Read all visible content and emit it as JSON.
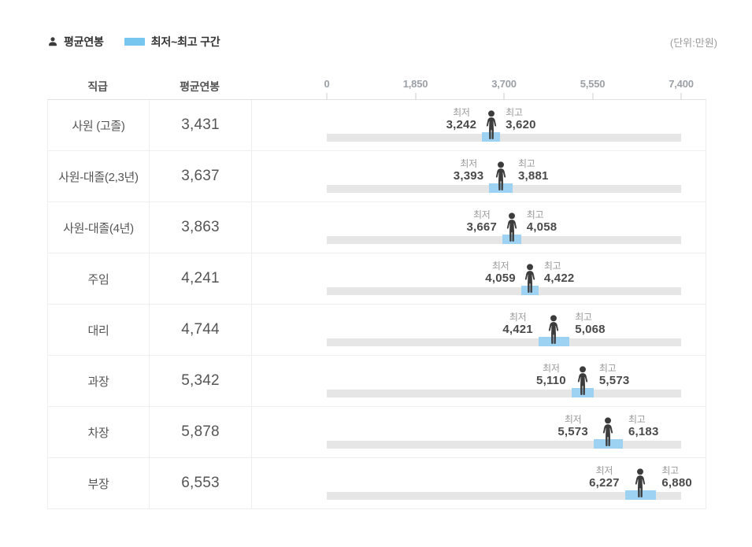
{
  "page": {
    "unit_note": "(단위:만원)"
  },
  "legend": {
    "avg_label": "평균연봉",
    "range_label": "최저~최고 구간",
    "swatch_color": "#76c6ef"
  },
  "table": {
    "headers": {
      "position": "직급",
      "average": "평균연봉"
    }
  },
  "chart_data": {
    "type": "bar",
    "subtype": "range-bar-with-average-marker",
    "xlim": [
      0,
      7400
    ],
    "axis_tick_values": [
      0,
      1850,
      3700,
      5550,
      7400
    ],
    "axis_tick_labels": [
      "0",
      "1,850",
      "3,700",
      "5,550",
      "7,400"
    ],
    "min_label": "최저",
    "max_label": "최고",
    "colors": {
      "range_bar": "#9dd2f3",
      "track": "#e6e6e6",
      "person": "#3c3c3c"
    },
    "rows": [
      {
        "position": "사원 (고졸)",
        "avg": 3431,
        "min": 3242,
        "max": 3620,
        "avg_display": "3,431",
        "min_display": "3,242",
        "max_display": "3,620"
      },
      {
        "position": "사원-대졸(2,3년)",
        "avg": 3637,
        "min": 3393,
        "max": 3881,
        "avg_display": "3,637",
        "min_display": "3,393",
        "max_display": "3,881"
      },
      {
        "position": "사원-대졸(4년)",
        "avg": 3863,
        "min": 3667,
        "max": 4058,
        "avg_display": "3,863",
        "min_display": "3,667",
        "max_display": "4,058"
      },
      {
        "position": "주임",
        "avg": 4241,
        "min": 4059,
        "max": 4422,
        "avg_display": "4,241",
        "min_display": "4,059",
        "max_display": "4,422"
      },
      {
        "position": "대리",
        "avg": 4744,
        "min": 4421,
        "max": 5068,
        "avg_display": "4,744",
        "min_display": "4,421",
        "max_display": "5,068"
      },
      {
        "position": "과장",
        "avg": 5342,
        "min": 5110,
        "max": 5573,
        "avg_display": "5,342",
        "min_display": "5,110",
        "max_display": "5,573"
      },
      {
        "position": "차장",
        "avg": 5878,
        "min": 5573,
        "max": 6183,
        "avg_display": "5,878",
        "min_display": "5,573",
        "max_display": "6,183"
      },
      {
        "position": "부장",
        "avg": 6553,
        "min": 6227,
        "max": 6880,
        "avg_display": "6,553",
        "min_display": "6,227",
        "max_display": "6,880"
      }
    ]
  }
}
